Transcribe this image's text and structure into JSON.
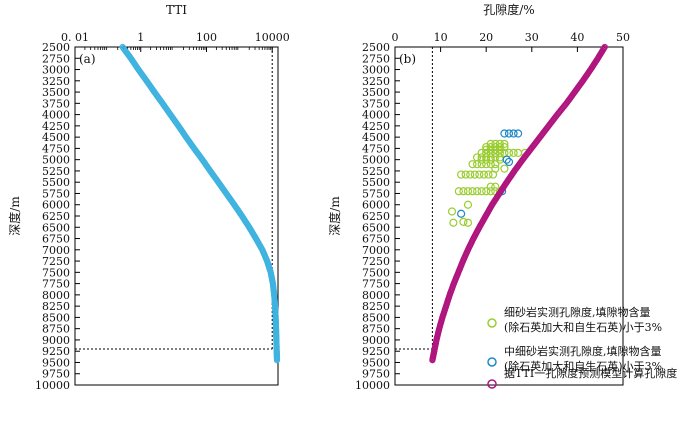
{
  "chart_data": [
    {
      "type": "scatter",
      "panel_label": "(a)",
      "title": "TTI",
      "ylabel": "深度/m",
      "x_scale": "log",
      "xlim": [
        0.01,
        15000
      ],
      "ylim": [
        10000,
        2500
      ],
      "x_tick_labels": [
        "0. 01",
        "1",
        "100",
        "10000"
      ],
      "x_tick_values": [
        0.01,
        1,
        100,
        10000
      ],
      "y_tick_values": [
        2500,
        2750,
        3000,
        3250,
        3500,
        3750,
        4000,
        4250,
        4500,
        4750,
        5000,
        5250,
        5500,
        5750,
        6000,
        6250,
        6500,
        6750,
        7000,
        7250,
        7500,
        7750,
        8000,
        8250,
        8500,
        8750,
        9000,
        9250,
        9500,
        9750,
        10000
      ],
      "series": [
        {
          "color": "#3fb3e0",
          "points": [
            [
              0.28,
              2500
            ],
            [
              0.5,
              2750
            ],
            [
              0.85,
              3000
            ],
            [
              1.5,
              3250
            ],
            [
              2.6,
              3500
            ],
            [
              4.6,
              3750
            ],
            [
              8,
              4000
            ],
            [
              14,
              4250
            ],
            [
              24,
              4500
            ],
            [
              42,
              4750
            ],
            [
              75,
              5000
            ],
            [
              130,
              5250
            ],
            [
              230,
              5500
            ],
            [
              400,
              5750
            ],
            [
              700,
              6000
            ],
            [
              1200,
              6250
            ],
            [
              2000,
              6500
            ],
            [
              3200,
              6750
            ],
            [
              5000,
              7000
            ],
            [
              7000,
              7250
            ],
            [
              9000,
              7500
            ],
            [
              10500,
              7750
            ],
            [
              11500,
              8000
            ],
            [
              12200,
              8250
            ],
            [
              12700,
              8500
            ],
            [
              13100,
              8750
            ],
            [
              13400,
              9000
            ],
            [
              13700,
              9250
            ],
            [
              14000,
              9450
            ]
          ]
        }
      ],
      "reference_lines": {
        "x": 10000,
        "y": 9200
      }
    },
    {
      "type": "scatter",
      "panel_label": "(b)",
      "title": "孔隙度/%",
      "ylabel": "深度/m",
      "xlim": [
        0,
        50
      ],
      "ylim": [
        10000,
        2500
      ],
      "x_tick_values": [
        0,
        10,
        20,
        30,
        40,
        50
      ],
      "y_tick_values": [
        2500,
        2750,
        3000,
        3250,
        3500,
        3750,
        4000,
        4250,
        4500,
        4750,
        5000,
        5250,
        5500,
        5750,
        6000,
        6250,
        6500,
        6750,
        7000,
        7250,
        7500,
        7750,
        8000,
        8250,
        8500,
        8750,
        9000,
        9250,
        9500,
        9750,
        10000
      ],
      "series": [
        {
          "name": "细砂岩实测孔隙度,填隙物含量(除石英加大和自生石英)小于3%",
          "legend_lines": [
            "细砂岩实测孔隙度,填隙物含量",
            "(除石英加大和自生石英)小于3%"
          ],
          "color": "#9acd32",
          "points": [
            [
              12.5,
              6150
            ],
            [
              12.8,
              6400
            ],
            [
              15,
              6380
            ],
            [
              16,
              6400
            ],
            [
              16,
              6000
            ],
            [
              14,
              5700
            ],
            [
              15,
              5700
            ],
            [
              16,
              5700
            ],
            [
              17,
              5700
            ],
            [
              18,
              5700
            ],
            [
              19,
              5700
            ],
            [
              20,
              5700
            ],
            [
              21,
              5700
            ],
            [
              22,
              5700
            ],
            [
              23,
              5700
            ],
            [
              14.5,
              5330
            ],
            [
              15.5,
              5330
            ],
            [
              16.5,
              5330
            ],
            [
              17.5,
              5330
            ],
            [
              18.5,
              5330
            ],
            [
              19.5,
              5330
            ],
            [
              20.5,
              5330
            ],
            [
              21.5,
              5330
            ],
            [
              17,
              5100
            ],
            [
              18,
              5100
            ],
            [
              19,
              5100
            ],
            [
              20,
              5100
            ],
            [
              21,
              5100
            ],
            [
              22,
              5100
            ],
            [
              18,
              4950
            ],
            [
              19,
              4950
            ],
            [
              20,
              4950
            ],
            [
              21,
              4950
            ],
            [
              22,
              4950
            ],
            [
              23,
              4950
            ],
            [
              19,
              4850
            ],
            [
              20,
              4850
            ],
            [
              21,
              4850
            ],
            [
              22,
              4850
            ],
            [
              23,
              4850
            ],
            [
              24,
              4850
            ],
            [
              25,
              4850
            ],
            [
              26,
              4850
            ],
            [
              27,
              4850
            ],
            [
              28.5,
              4850
            ],
            [
              20,
              4720
            ],
            [
              21,
              4720
            ],
            [
              22,
              4720
            ],
            [
              23,
              4720
            ],
            [
              24,
              4720
            ],
            [
              20,
              4780
            ],
            [
              21,
              4780
            ],
            [
              22,
              4780
            ],
            [
              23,
              4780
            ],
            [
              21,
              4650
            ],
            [
              22,
              4650
            ],
            [
              23,
              4650
            ],
            [
              24,
              4650
            ],
            [
              19,
              5000
            ],
            [
              20,
              5000
            ],
            [
              21,
              5000
            ],
            [
              23,
              5000
            ],
            [
              22,
              5200
            ],
            [
              24,
              5200
            ],
            [
              21,
              5600
            ],
            [
              22,
              5600
            ]
          ]
        },
        {
          "name": "中细砂岩实测孔隙度,填隙物含量(除石英加大和自生石英)小于3%",
          "legend_lines": [
            "中细砂岩实测孔隙度,填隙物含量",
            "(除石英加大和自生石英)小于3%"
          ],
          "color": "#1e88c8",
          "points": [
            [
              24,
              4420
            ],
            [
              25,
              4420
            ],
            [
              26,
              4420
            ],
            [
              27,
              4420
            ],
            [
              24.5,
              5000
            ],
            [
              25,
              5050
            ],
            [
              14.5,
              6200
            ],
            [
              23.5,
              5700
            ]
          ]
        },
        {
          "name": "据TTI一孔隙度预测模型计算孔隙度",
          "legend_lines": [
            "据TTI一孔隙度预测模型计算孔隙度"
          ],
          "color": "#b0157e",
          "points": [
            [
              46,
              2500
            ],
            [
              44.5,
              2750
            ],
            [
              42.9,
              3000
            ],
            [
              41.2,
              3250
            ],
            [
              39.4,
              3500
            ],
            [
              37.6,
              3750
            ],
            [
              35.6,
              4000
            ],
            [
              33.7,
              4250
            ],
            [
              31.8,
              4500
            ],
            [
              29.9,
              4750
            ],
            [
              28,
              5000
            ],
            [
              26.2,
              5250
            ],
            [
              24.5,
              5500
            ],
            [
              22.9,
              5750
            ],
            [
              21.3,
              6000
            ],
            [
              19.9,
              6250
            ],
            [
              18.5,
              6500
            ],
            [
              17.2,
              6750
            ],
            [
              16,
              7000
            ],
            [
              14.9,
              7250
            ],
            [
              13.9,
              7500
            ],
            [
              12.9,
              7750
            ],
            [
              12,
              8000
            ],
            [
              11.2,
              8250
            ],
            [
              10.4,
              8500
            ],
            [
              9.7,
              8750
            ],
            [
              9.1,
              9000
            ],
            [
              8.6,
              9250
            ],
            [
              8.2,
              9450
            ]
          ]
        }
      ],
      "reference_lines": {
        "x": 8.2,
        "y": 9200
      }
    }
  ]
}
